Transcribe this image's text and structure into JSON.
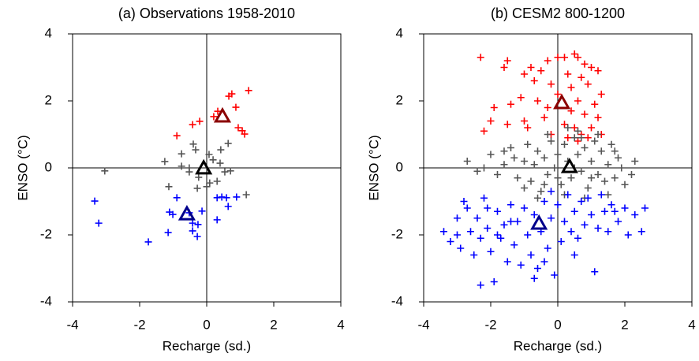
{
  "chart_data": [
    {
      "type": "scatter",
      "title": "(a) Observations 1958-2010",
      "xlabel": "Recharge (sd.)",
      "ylabel": "ENSO (°C)",
      "xlim": [
        -4,
        4
      ],
      "ylim": [
        -4,
        4
      ],
      "xticks": [
        -4,
        -2,
        0,
        2,
        4
      ],
      "yticks": [
        -4,
        -2,
        0,
        2,
        4
      ],
      "zero_lines": true,
      "series": [
        {
          "color": "#ff0000",
          "marker": "plus",
          "x": [
            0.75,
            0.66,
            1.25,
            0.87,
            0.33,
            0.21,
            -0.21,
            -0.42,
            0.94,
            1.06,
            1.13,
            -0.89
          ],
          "values": [
            2.21,
            2.14,
            2.31,
            1.81,
            1.69,
            1.53,
            1.39,
            1.29,
            1.2,
            1.11,
            1.01,
            0.96
          ]
        },
        {
          "color": "#555555",
          "marker": "plus",
          "x": [
            -3.04,
            -1.25,
            -0.75,
            -0.4,
            -0.33,
            -0.52,
            -0.75,
            0.07,
            0.42,
            0.64,
            0.19,
            -0.24,
            0,
            0.09,
            0.31,
            0.54,
            0.71,
            0.4,
            -1.13,
            -0.28,
            1.18,
            -0.52
          ],
          "values": [
            -0.09,
            0.19,
            0.42,
            0.71,
            0.54,
            0,
            0.05,
            0.4,
            0.54,
            0.73,
            0.24,
            -0.28,
            -0.56,
            -0.45,
            -0.4,
            -0.12,
            -0.09,
            0.14,
            -0.56,
            -0.61,
            -0.8,
            -0.12
          ]
        },
        {
          "color": "#0000ff",
          "marker": "plus",
          "x": [
            -3.34,
            -3.22,
            -1.74,
            -1.15,
            -1.11,
            -1.01,
            -0.89,
            -0.42,
            -0.42,
            -0.26,
            -0.14,
            0.31,
            0.45,
            0.59,
            0.64,
            0.89,
            0.31,
            -0.28,
            -0.52
          ],
          "values": [
            -0.99,
            -1.65,
            -2.21,
            -1.93,
            -1.32,
            -1.39,
            -0.89,
            -1.65,
            -1.88,
            -1.69,
            -1.29,
            -0.89,
            -0.87,
            -0.89,
            -1.15,
            -0.87,
            -1.55,
            -2.05,
            -1.34
          ]
        },
        {
          "color": "#8b0000",
          "marker": "triangle",
          "x": [
            0.47
          ],
          "values": [
            1.53
          ]
        },
        {
          "color": "#000000",
          "marker": "triangle",
          "x": [
            -0.09
          ],
          "values": [
            -0.02
          ]
        },
        {
          "color": "#00008b",
          "marker": "triangle",
          "x": [
            -0.59
          ],
          "values": [
            -1.39
          ]
        }
      ]
    },
    {
      "type": "scatter",
      "title": "(b) CESM2 800-1200",
      "xlabel": "Recharge (sd.)",
      "ylabel": "ENSO (°C)",
      "xlim": [
        -4,
        4
      ],
      "ylim": [
        -4,
        4
      ],
      "xticks": [
        -4,
        -2,
        0,
        2,
        4
      ],
      "yticks": [
        -4,
        -2,
        0,
        2,
        4
      ],
      "zero_lines": true,
      "series": [
        {
          "color": "#ff0000",
          "marker": "plus",
          "x": [
            -2.3,
            -1.5,
            -1.6,
            -0.8,
            -0.5,
            -0.3,
            0.0,
            0.2,
            0.5,
            0.6,
            0.8,
            1.0,
            1.2,
            0.3,
            0.7,
            -1.0,
            -0.7,
            -0.2,
            0.4,
            0.9,
            1.3,
            -1.9,
            -2.0,
            -1.4,
            -1.1,
            -0.6,
            -0.3,
            0.6,
            1.1,
            0.8,
            -1.5,
            -1.0,
            -0.9,
            -0.4,
            0.2,
            0.5,
            0.7,
            1.0,
            1.2,
            -2.2,
            -0.2,
            0.3,
            0.9,
            1.3,
            0.6,
            0.0,
            0.4
          ],
          "values": [
            3.3,
            3.2,
            3.0,
            3.0,
            2.9,
            3.2,
            3.3,
            3.3,
            3.4,
            3.3,
            3.1,
            3.0,
            2.9,
            2.8,
            2.7,
            2.8,
            2.6,
            2.5,
            2.4,
            2.5,
            2.2,
            1.8,
            1.4,
            1.9,
            2.1,
            2.0,
            1.8,
            2.0,
            1.9,
            1.6,
            1.3,
            1.4,
            1.2,
            1.5,
            1.3,
            1.2,
            1.0,
            1.2,
            1.5,
            1.1,
            1.0,
            0.9,
            0.9,
            1.0,
            0.8,
            2.2,
            1.7
          ]
        },
        {
          "color": "#555555",
          "marker": "plus",
          "x": [
            -2.7,
            -2.2,
            -2.0,
            -1.8,
            -1.6,
            -1.4,
            -1.3,
            -1.2,
            -1.0,
            -0.9,
            -0.8,
            -0.7,
            -0.6,
            -0.5,
            -0.4,
            -0.3,
            -0.2,
            -0.1,
            0.0,
            0.1,
            0.2,
            0.3,
            0.4,
            0.5,
            0.6,
            0.7,
            0.8,
            0.9,
            1.0,
            1.1,
            1.2,
            1.3,
            1.4,
            1.5,
            1.6,
            1.7,
            1.8,
            1.9,
            2.0,
            2.2,
            2.3,
            0.3,
            0.6,
            -0.3,
            0.8,
            0.2,
            -0.6,
            -1.0,
            1.5,
            0.5,
            1.0,
            -1.6,
            0.0,
            1.2,
            -0.4,
            0.7,
            1.7,
            -2.4
          ],
          "values": [
            0.2,
            0.0,
            0.4,
            -0.2,
            0.1,
            0.6,
            0.3,
            -0.3,
            0.2,
            0.7,
            -0.4,
            0.1,
            0.5,
            -0.7,
            0.3,
            -0.2,
            0.8,
            0.0,
            0.4,
            -0.5,
            0.7,
            0.2,
            -0.3,
            0.9,
            0.4,
            -0.1,
            0.6,
            -0.6,
            0.2,
            0.8,
            -0.2,
            0.5,
            -0.4,
            0.1,
            0.7,
            -0.3,
            0.3,
            0.0,
            -0.5,
            -0.2,
            0.2,
            1.2,
            1.1,
            1.0,
            -0.9,
            -0.8,
            -0.9,
            -0.6,
            -0.8,
            0.0,
            -0.3,
            0.5,
            -0.3,
            1.0,
            -0.5,
            0.9,
            0.5,
            -0.1
          ]
        },
        {
          "color": "#0000ff",
          "marker": "plus",
          "x": [
            -3.4,
            -3.2,
            -3.0,
            -2.9,
            -2.7,
            -2.6,
            -2.5,
            -2.4,
            -2.3,
            -2.3,
            -2.2,
            -2.1,
            -2.0,
            -1.9,
            -1.8,
            -1.7,
            -1.6,
            -1.5,
            -1.4,
            -1.3,
            -1.2,
            -1.1,
            -1.0,
            -0.9,
            -0.8,
            -0.7,
            -0.6,
            -0.5,
            -0.4,
            -0.3,
            -0.2,
            -0.1,
            0.0,
            0.1,
            0.2,
            0.3,
            0.4,
            0.5,
            0.6,
            0.7,
            0.8,
            0.9,
            1.0,
            1.1,
            1.2,
            1.3,
            1.4,
            1.5,
            1.6,
            1.8,
            2.0,
            2.1,
            2.3,
            2.5,
            2.6,
            -0.7,
            -1.4,
            -2.8,
            -0.4,
            0.5,
            -1.8,
            -2.1,
            -0.2,
            1.7,
            -3.0
          ],
          "values": [
            -1.9,
            -2.2,
            -1.5,
            -2.4,
            -1.2,
            -1.9,
            -2.6,
            -1.5,
            -3.5,
            -2.1,
            -0.9,
            -1.8,
            -2.5,
            -3.4,
            -1.3,
            -2.1,
            -1.7,
            -2.8,
            -1.1,
            -2.3,
            -1.6,
            -2.9,
            -1.2,
            -2.0,
            -2.6,
            -1.4,
            -3.0,
            -1.9,
            -1.0,
            -2.4,
            -1.5,
            -3.2,
            -1.1,
            -2.2,
            -1.6,
            -0.8,
            -1.9,
            -1.3,
            -2.1,
            -1.0,
            -1.7,
            -0.9,
            -1.4,
            -3.1,
            -1.8,
            -0.8,
            -1.3,
            -1.9,
            -1.1,
            -1.6,
            -1.2,
            -2.0,
            -1.4,
            -1.9,
            -1.2,
            -3.3,
            -1.6,
            -1.0,
            -2.8,
            -2.6,
            -2.0,
            -1.2,
            -0.7,
            -1.3,
            -2.0
          ]
        },
        {
          "color": "#8b0000",
          "marker": "triangle",
          "x": [
            0.12
          ],
          "values": [
            1.93
          ]
        },
        {
          "color": "#000000",
          "marker": "triangle",
          "x": [
            0.35
          ],
          "values": [
            0.02
          ]
        },
        {
          "color": "#00008b",
          "marker": "triangle",
          "x": [
            -0.56
          ],
          "values": [
            -1.67
          ]
        }
      ]
    }
  ]
}
